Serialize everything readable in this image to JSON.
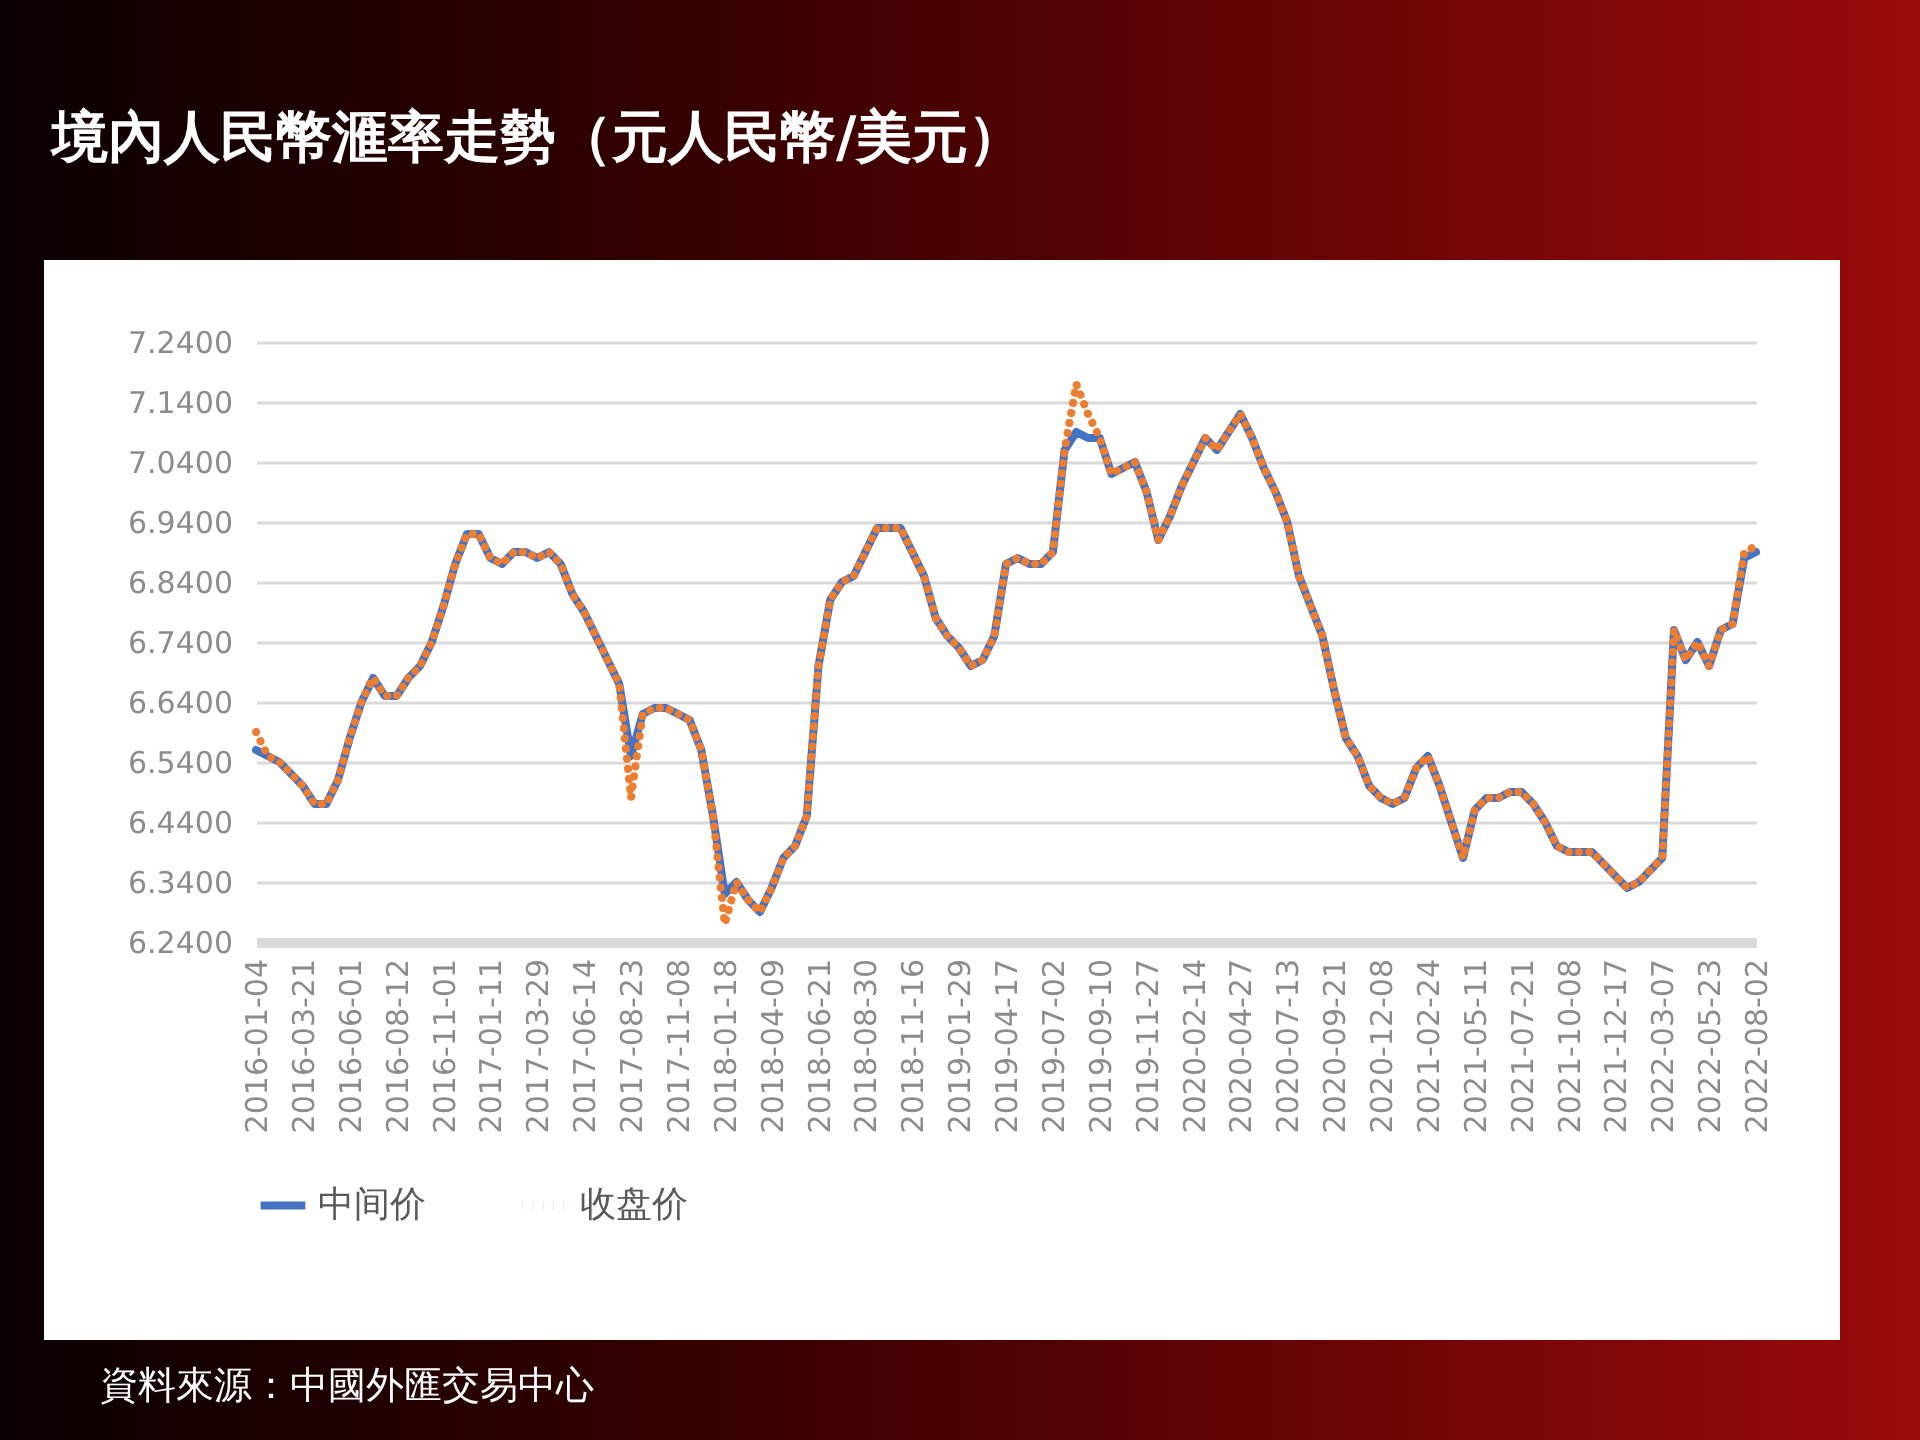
{
  "chart_data": {
    "type": "line",
    "title": "境內人民幣滙率走勢（元人民幣/美元）",
    "categories": [
      "2016-01-04",
      null,
      null,
      null,
      "2016-03-21",
      null,
      null,
      null,
      "2016-06-01",
      null,
      null,
      null,
      "2016-08-12",
      null,
      null,
      null,
      "2016-11-01",
      null,
      null,
      null,
      "2017-01-11",
      null,
      null,
      null,
      "2017-03-29",
      null,
      null,
      null,
      "2017-06-14",
      null,
      null,
      null,
      "2017-08-23",
      null,
      null,
      null,
      "2017-11-08",
      null,
      null,
      null,
      "2018-01-18",
      null,
      null,
      null,
      "2018-04-09",
      null,
      null,
      null,
      "2018-06-21",
      null,
      null,
      null,
      "2018-08-30",
      null,
      null,
      null,
      "2018-11-16",
      null,
      null,
      null,
      "2019-01-29",
      null,
      null,
      null,
      "2019-04-17",
      null,
      null,
      null,
      "2019-07-02",
      null,
      null,
      null,
      "2019-09-10",
      null,
      null,
      null,
      "2019-11-27",
      null,
      null,
      null,
      "2020-02-14",
      null,
      null,
      null,
      "2020-04-27",
      null,
      null,
      null,
      "2020-07-13",
      null,
      null,
      null,
      "2020-09-21",
      null,
      null,
      null,
      "2020-12-08",
      null,
      null,
      null,
      "2021-02-24",
      null,
      null,
      null,
      "2021-05-11",
      null,
      null,
      null,
      "2021-07-21",
      null,
      null,
      null,
      "2021-10-08",
      null,
      null,
      null,
      "2021-12-17",
      null,
      null,
      null,
      "2022-03-07",
      null,
      null,
      null,
      "2022-05-23",
      null,
      null,
      null,
      "2022-08-02"
    ],
    "series": [
      {
        "name": "中间价",
        "color": "#4472c4",
        "line_style": "solid",
        "values": [
          6.56,
          6.55,
          6.54,
          6.52,
          6.5,
          6.47,
          6.47,
          6.51,
          6.58,
          6.64,
          6.68,
          6.65,
          6.65,
          6.68,
          6.7,
          6.74,
          6.8,
          6.87,
          6.92,
          6.92,
          6.88,
          6.87,
          6.89,
          6.89,
          6.88,
          6.89,
          6.87,
          6.82,
          6.79,
          6.75,
          6.71,
          6.67,
          6.55,
          6.62,
          6.63,
          6.63,
          6.62,
          6.61,
          6.56,
          6.45,
          6.32,
          6.34,
          6.31,
          6.29,
          6.33,
          6.38,
          6.4,
          6.45,
          6.7,
          6.81,
          6.84,
          6.85,
          6.89,
          6.93,
          6.93,
          6.93,
          6.89,
          6.85,
          6.78,
          6.75,
          6.73,
          6.7,
          6.71,
          6.75,
          6.87,
          6.88,
          6.87,
          6.87,
          6.89,
          7.06,
          7.09,
          7.08,
          7.08,
          7.02,
          7.03,
          7.04,
          6.99,
          6.91,
          6.95,
          7.0,
          7.04,
          7.08,
          7.06,
          7.09,
          7.12,
          7.08,
          7.03,
          6.99,
          6.94,
          6.85,
          6.8,
          6.75,
          6.66,
          6.58,
          6.55,
          6.5,
          6.48,
          6.47,
          6.48,
          6.53,
          6.55,
          6.5,
          6.44,
          6.38,
          6.46,
          6.48,
          6.48,
          6.49,
          6.49,
          6.47,
          6.44,
          6.4,
          6.39,
          6.39,
          6.39,
          6.37,
          6.35,
          6.33,
          6.34,
          6.36,
          6.38,
          6.76,
          6.71,
          6.74,
          6.7,
          6.76,
          6.77,
          6.88,
          6.89
        ]
      },
      {
        "name": "收盘价",
        "color": "#ed7d31",
        "line_style": "dotted",
        "values": [
          6.59,
          6.55,
          6.54,
          6.52,
          6.5,
          6.47,
          6.47,
          6.51,
          6.58,
          6.64,
          6.68,
          6.65,
          6.65,
          6.68,
          6.7,
          6.74,
          6.8,
          6.87,
          6.92,
          6.92,
          6.88,
          6.87,
          6.89,
          6.89,
          6.88,
          6.89,
          6.87,
          6.82,
          6.79,
          6.75,
          6.71,
          6.67,
          6.48,
          6.62,
          6.63,
          6.63,
          6.62,
          6.61,
          6.56,
          6.45,
          6.27,
          6.34,
          6.31,
          6.29,
          6.33,
          6.38,
          6.4,
          6.45,
          6.7,
          6.81,
          6.84,
          6.85,
          6.89,
          6.93,
          6.93,
          6.93,
          6.89,
          6.85,
          6.78,
          6.75,
          6.73,
          6.7,
          6.71,
          6.75,
          6.87,
          6.88,
          6.87,
          6.87,
          6.89,
          7.06,
          7.17,
          7.12,
          7.08,
          7.02,
          7.03,
          7.04,
          6.99,
          6.91,
          6.95,
          7.0,
          7.04,
          7.08,
          7.06,
          7.09,
          7.12,
          7.08,
          7.03,
          6.99,
          6.94,
          6.85,
          6.8,
          6.75,
          6.66,
          6.58,
          6.55,
          6.5,
          6.48,
          6.47,
          6.48,
          6.53,
          6.55,
          6.5,
          6.44,
          6.38,
          6.46,
          6.48,
          6.48,
          6.49,
          6.49,
          6.47,
          6.44,
          6.4,
          6.39,
          6.39,
          6.39,
          6.37,
          6.35,
          6.33,
          6.34,
          6.36,
          6.38,
          6.76,
          6.71,
          6.74,
          6.7,
          6.76,
          6.77,
          6.89,
          6.9
        ]
      }
    ],
    "ylim": [
      6.24,
      7.24
    ],
    "yticks": [
      {
        "value": 6.24,
        "label": "6.2400"
      },
      {
        "value": 6.34,
        "label": "6.3400"
      },
      {
        "value": 6.44,
        "label": "6.4400"
      },
      {
        "value": 6.54,
        "label": "6.5400"
      },
      {
        "value": 6.64,
        "label": "6.6400"
      },
      {
        "value": 6.74,
        "label": "6.7400"
      },
      {
        "value": 6.84,
        "label": "6.8400"
      },
      {
        "value": 6.94,
        "label": "6.9400"
      },
      {
        "value": 7.04,
        "label": "7.0400"
      },
      {
        "value": 7.14,
        "label": "7.1400"
      },
      {
        "value": 7.24,
        "label": "7.2400"
      }
    ],
    "grid": "y",
    "legend": "bottom",
    "annotations": [
      "資料來源：中國外匯交易中心"
    ]
  }
}
